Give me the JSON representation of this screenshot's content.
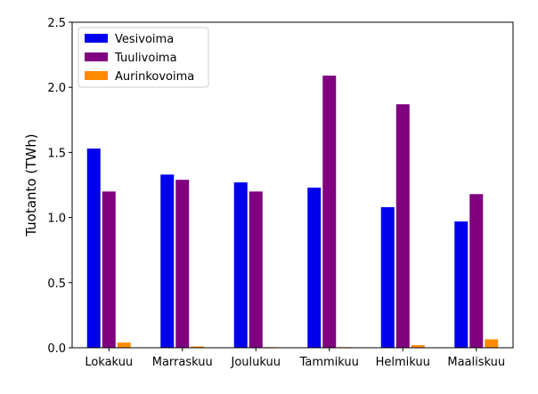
{
  "chart_data": {
    "type": "bar",
    "title": "",
    "xlabel": "",
    "ylabel": "Tuotanto (TWh)",
    "ylim": [
      0,
      2.5
    ],
    "yticks": [
      0.0,
      0.5,
      1.0,
      1.5,
      2.0,
      2.5
    ],
    "ytick_labels": [
      "0.0",
      "0.5",
      "1.0",
      "1.5",
      "2.0",
      "2.5"
    ],
    "grid": false,
    "legend_position": "top-left",
    "categories": [
      "Lokakuu",
      "Marraskuu",
      "Joulukuu",
      "Tammikuu",
      "Helmikuu",
      "Maaliskuu"
    ],
    "series": [
      {
        "name": "Vesivoima",
        "color": "#0000ee",
        "values": [
          1.53,
          1.33,
          1.27,
          1.23,
          1.08,
          0.97
        ]
      },
      {
        "name": "Tuulivoima",
        "color": "#800080",
        "values": [
          1.2,
          1.29,
          1.2,
          2.09,
          1.87,
          1.18
        ]
      },
      {
        "name": "Aurinkovoima",
        "color": "#ff8c00",
        "values": [
          0.04,
          0.01,
          0.005,
          0.005,
          0.02,
          0.065
        ]
      }
    ]
  }
}
